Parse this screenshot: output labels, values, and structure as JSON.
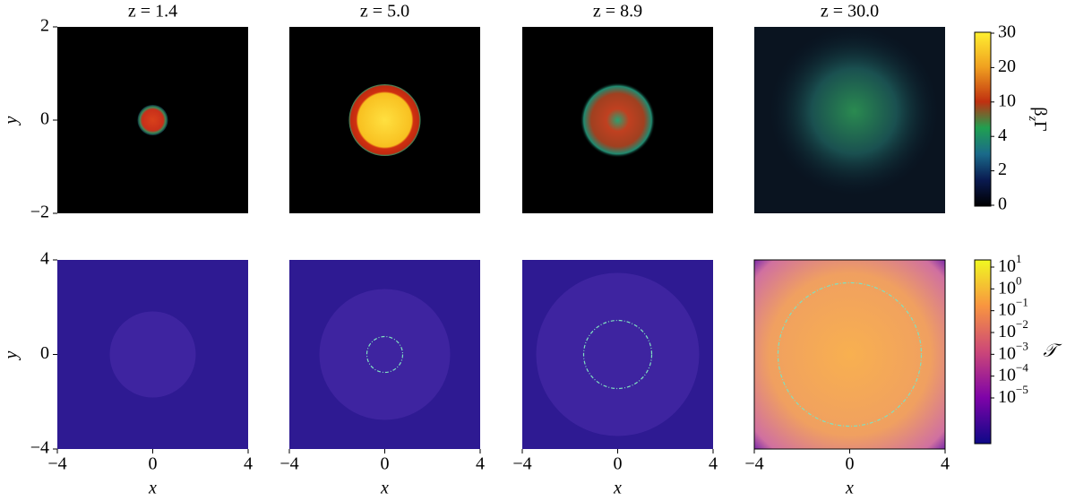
{
  "titles": [
    "z = 1.4",
    "z = 5.0",
    "z = 8.9",
    "z = 30.0"
  ],
  "top_row": {
    "y_label": "y",
    "y_ticks": [
      "2",
      "0",
      "−2"
    ]
  },
  "bottom_row": {
    "y_label": "y",
    "y_ticks": [
      "4",
      "0",
      "−4"
    ],
    "x_label": "x",
    "x_ticks": [
      "−4",
      "0",
      "4"
    ]
  },
  "colorbar_top": {
    "label": {
      "main": "β",
      "sub": "z",
      "tail": "Γ"
    },
    "ticks": [
      "30",
      "20",
      "10",
      "4",
      "2",
      "0"
    ]
  },
  "colorbar_bottom": {
    "label": "𝒯",
    "ticks": [
      {
        "base": "10",
        "exp": "1"
      },
      {
        "base": "10",
        "exp": "0"
      },
      {
        "base": "10",
        "exp": "−1"
      },
      {
        "base": "10",
        "exp": "−2"
      },
      {
        "base": "10",
        "exp": "−3"
      },
      {
        "base": "10",
        "exp": "−4"
      },
      {
        "base": "10",
        "exp": "−5"
      }
    ]
  }
}
